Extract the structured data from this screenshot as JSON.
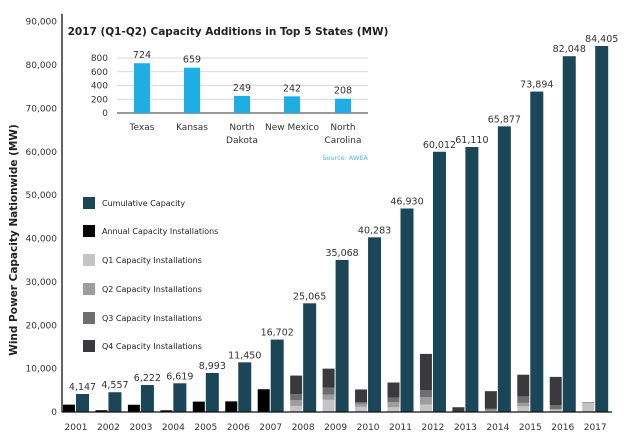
{
  "chart_data": [
    {
      "type": "bar",
      "ylabel": "Wind Power Capacity Nationwide (MW)",
      "ylim": [
        0,
        90000
      ],
      "yticks": [
        "0",
        "10,000",
        "20,000",
        "30,000",
        "40,000",
        "50,000",
        "60,000",
        "70,000",
        "80,000",
        "90,000"
      ],
      "categories": [
        "2001",
        "2002",
        "2003",
        "2004",
        "2005",
        "2006",
        "2007",
        "2008",
        "2009",
        "2010",
        "2011",
        "2012",
        "2013",
        "2014",
        "2015",
        "2016",
        "2017"
      ],
      "grid": false,
      "legend_placement": "left-middle",
      "legend": [
        {
          "name": "Cumulative Capacity",
          "color": "#1a4658"
        },
        {
          "name": "Annual Capacity Installations",
          "color": "#000000"
        },
        {
          "name": "Q1 Capacity Installations",
          "color": "#c4c4c6"
        },
        {
          "name": "Q2 Capacity Installations",
          "color": "#9d9d9f"
        },
        {
          "name": "Q3 Capacity Installations",
          "color": "#6e6e70"
        },
        {
          "name": "Q4 Capacity Installations",
          "color": "#3a3a3c"
        }
      ],
      "series": [
        {
          "name": "Cumulative Capacity",
          "values": [
            4147,
            4557,
            6222,
            6619,
            8993,
            11450,
            16702,
            25065,
            35068,
            40283,
            46930,
            60012,
            61110,
            65877,
            73894,
            82048,
            84405
          ],
          "labels": [
            "4,147",
            "4,557",
            "6,222",
            "6,619",
            "8,993",
            "11,450",
            "16,702",
            "25,065",
            "35,068",
            "40,283",
            "46,930",
            "60,012",
            "61,110",
            "65,877",
            "73,894",
            "82,048",
            "84,405"
          ]
        },
        {
          "name": "Annual Capacity Installations",
          "values": [
            1700,
            410,
            1670,
            390,
            2400,
            2450,
            5250,
            null,
            null,
            null,
            null,
            null,
            null,
            null,
            null,
            null,
            null
          ]
        },
        {
          "name": "Q1 Capacity Installations",
          "values": [
            null,
            null,
            null,
            null,
            null,
            null,
            null,
            1400,
            2800,
            1200,
            1100,
            1700,
            0,
            200,
            1300,
            500,
            2000
          ]
        },
        {
          "name": "Q2 Capacity Installations",
          "values": [
            null,
            null,
            null,
            null,
            null,
            null,
            null,
            1300,
            1200,
            700,
            1200,
            1700,
            0,
            300,
            800,
            200,
            300
          ]
        },
        {
          "name": "Q3 Capacity Installations",
          "values": [
            null,
            null,
            null,
            null,
            null,
            null,
            null,
            1400,
            1600,
            400,
            1000,
            1600,
            0,
            300,
            1500,
            900,
            0
          ]
        },
        {
          "name": "Q4 Capacity Installations",
          "values": [
            null,
            null,
            null,
            null,
            null,
            null,
            null,
            4300,
            4400,
            2900,
            3500,
            8400,
            1100,
            4000,
            5000,
            6500,
            0
          ]
        }
      ]
    },
    {
      "type": "bar",
      "title": "2017 (Q1-Q2) Capacity Additions in Top 5 States (MW)",
      "categories": [
        [
          "Texas"
        ],
        [
          "Kansas"
        ],
        [
          "North",
          "Dakota"
        ],
        [
          "New Mexico"
        ],
        [
          "North",
          "Carolina"
        ]
      ],
      "values": [
        724,
        659,
        249,
        242,
        208
      ],
      "labels": [
        "724",
        "659",
        "249",
        "242",
        "208"
      ],
      "ylim": [
        0,
        800
      ],
      "yticks": [
        "0",
        "200",
        "400",
        "600",
        "800"
      ],
      "grid": true,
      "color": "#1eaee4",
      "source": "Source: AWEA",
      "source_color": "#4fb8e0"
    }
  ]
}
